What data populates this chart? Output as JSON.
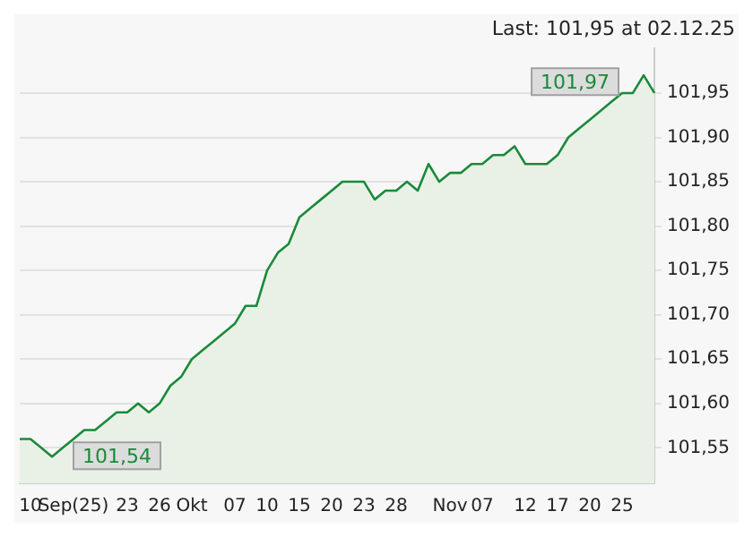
{
  "chart_data": {
    "type": "area",
    "title": "Last: 101,95 at 02.12.25",
    "categories": [
      null,
      "10",
      null,
      null,
      null,
      "Sep(25)",
      null,
      null,
      null,
      null,
      "23",
      null,
      null,
      "26",
      null,
      null,
      "Okt",
      null,
      null,
      null,
      "07",
      null,
      null,
      "10",
      null,
      null,
      "15",
      null,
      null,
      "20",
      null,
      null,
      "23",
      null,
      null,
      "28",
      null,
      null,
      null,
      null,
      "Nov",
      null,
      null,
      "07",
      null,
      null,
      null,
      "12",
      null,
      null,
      "17",
      null,
      null,
      "20",
      null,
      null,
      "25",
      null,
      null,
      null
    ],
    "series": [
      {
        "color": "#1a8a3a",
        "values": [
          101.56,
          101.56,
          101.55,
          101.54,
          101.55,
          101.56,
          101.57,
          101.57,
          101.58,
          101.59,
          101.59,
          101.6,
          101.59,
          101.6,
          101.62,
          101.63,
          101.65,
          101.66,
          101.67,
          101.68,
          101.69,
          101.71,
          101.71,
          101.75,
          101.77,
          101.78,
          101.81,
          101.82,
          101.83,
          101.84,
          101.85,
          101.85,
          101.85,
          101.83,
          101.84,
          101.84,
          101.85,
          101.84,
          101.87,
          101.85,
          101.86,
          101.86,
          101.87,
          101.87,
          101.88,
          101.88,
          101.89,
          101.87,
          101.87,
          101.87,
          101.88,
          101.9,
          101.91,
          101.92,
          101.93,
          101.94,
          101.95,
          101.95,
          101.97,
          101.95
        ]
      }
    ],
    "ylim": [
      101.51,
      102.0
    ],
    "yticks": [
      {
        "value": 101.55,
        "label": "101,55"
      },
      {
        "value": 101.6,
        "label": "101,60"
      },
      {
        "value": 101.65,
        "label": "101,65"
      },
      {
        "value": 101.7,
        "label": "101,70"
      },
      {
        "value": 101.75,
        "label": "101,75"
      },
      {
        "value": 101.8,
        "label": "101,80"
      },
      {
        "value": 101.85,
        "label": "101,85"
      },
      {
        "value": 101.9,
        "label": "101,90"
      },
      {
        "value": 101.95,
        "label": "101,95"
      }
    ],
    "grid": "y",
    "annotations": [
      "101,97",
      "101,54"
    ]
  }
}
